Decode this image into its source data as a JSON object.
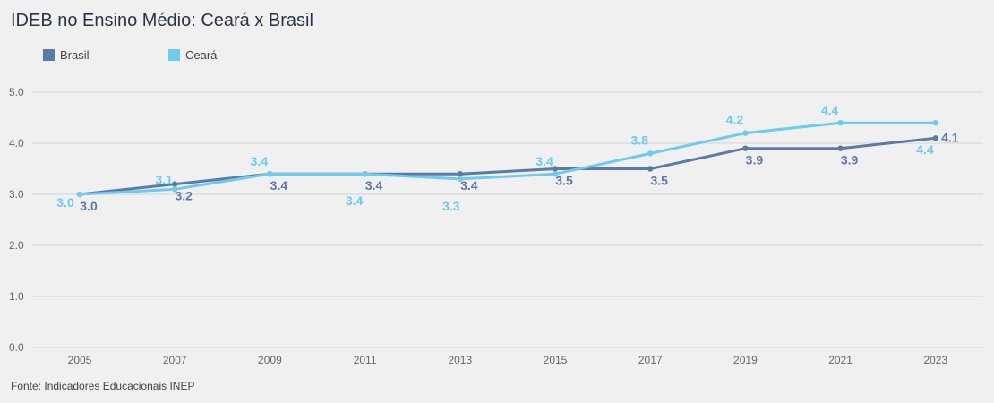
{
  "header": {
    "title": "IDEB no Ensino Médio: Ceará x Brasil"
  },
  "footer": {
    "source": "Fonte: Indicadores Educacionais INEP"
  },
  "chart_data": {
    "type": "line",
    "title": "IDEB no Ensino Médio: Ceará x Brasil",
    "xlabel": "",
    "ylabel": "",
    "categories": [
      "2005",
      "2007",
      "2009",
      "2011",
      "2013",
      "2015",
      "2017",
      "2019",
      "2021",
      "2023"
    ],
    "ylim": [
      0,
      5
    ],
    "yticks": [
      "0.0",
      "1.0",
      "2.0",
      "3.0",
      "4.0",
      "5.0"
    ],
    "grid": true,
    "legend_position": "top-left",
    "series": [
      {
        "name": "Brasil",
        "color": "#5b7ba6",
        "values": [
          3.0,
          3.2,
          3.4,
          3.4,
          3.4,
          3.5,
          3.5,
          3.9,
          3.9,
          4.1
        ],
        "labels": [
          "3.0",
          "3.2",
          "3.4",
          "3.4",
          "3.4",
          "3.5",
          "3.5",
          "3.9",
          "3.9",
          "4.1"
        ]
      },
      {
        "name": "Ceará",
        "color": "#6ccbef",
        "values": [
          3.0,
          3.1,
          3.4,
          3.4,
          3.3,
          3.4,
          3.8,
          4.2,
          4.4,
          4.4
        ],
        "labels": [
          "3.0",
          "3.1",
          "3.4",
          "3.4",
          "3.3",
          "3.4",
          "3.8",
          "4.2",
          "4.4",
          "4.4"
        ]
      }
    ]
  }
}
